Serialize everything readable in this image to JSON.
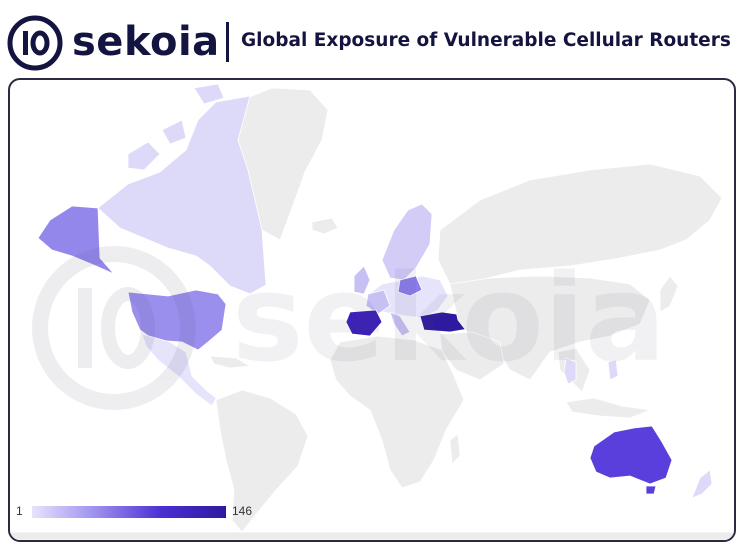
{
  "header": {
    "logo_text": "sekoia",
    "title": "Global Exposure of Vulnerable Cellular Routers"
  },
  "legend": {
    "min": "1",
    "max": "146"
  },
  "colors": {
    "base_land": "#ececec",
    "border": "#ffffff",
    "low": "#e6e4fb",
    "mid": "#9b8fee",
    "high": "#4c2fd4",
    "max": "#2d1a9e",
    "brand_dark": "#141440"
  },
  "chart_data": {
    "type": "heatmap",
    "map": "world-choropleth",
    "value_range": [
      1,
      146
    ],
    "highlighted_regions": [
      "Canada",
      "United States",
      "Alaska",
      "Mexico",
      "Spain",
      "Turkey",
      "Poland",
      "Sweden",
      "Norway",
      "Finland",
      "France",
      "Italy",
      "United Kingdom",
      "Germany",
      "Thailand",
      "Philippines",
      "Australia",
      "New Zealand"
    ]
  }
}
